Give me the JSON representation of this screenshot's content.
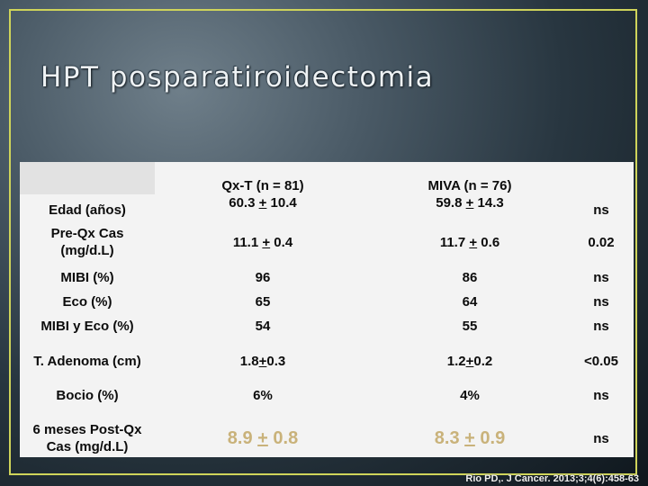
{
  "title": "HPT posparatiroidectomia",
  "table": {
    "header": {
      "col1": "",
      "col2": "Qx-T (n = 81)",
      "col3": "MIVA (n = 76)",
      "col4": ""
    },
    "rows": [
      {
        "label": "Edad (años)",
        "qxt": [
          "60.3 ",
          "+",
          " 10.4"
        ],
        "miva": [
          "59.8 ",
          "+",
          " 14.3"
        ],
        "p": "ns"
      },
      {
        "label": "Pre-Qx Cas (mg/d.L)",
        "qxt": [
          "11.1 ",
          "+",
          " 0.4"
        ],
        "miva": [
          "11.7 ",
          "+",
          " 0.6"
        ],
        "p": "0.02"
      },
      {
        "label": "MIBI (%)",
        "qxt": "96",
        "miva": "86",
        "p": "ns"
      },
      {
        "label": "Eco (%)",
        "qxt": "65",
        "miva": "64",
        "p": "ns"
      },
      {
        "label": "MIBI y Eco (%)",
        "qxt": "54",
        "miva": "55",
        "p": "ns"
      },
      {
        "label": "T. Adenoma (cm)",
        "qxt": [
          "1.8",
          "+",
          "0.3"
        ],
        "miva": [
          "1.2",
          "+",
          "0.2"
        ],
        "p": "<0.05"
      },
      {
        "label": "Bocio (%)",
        "qxt": "6%",
        "miva": "4%",
        "p": "ns"
      },
      {
        "label": "6 meses Post-Qx Cas (mg/d.L)",
        "qxt": [
          "8.9 ",
          "+",
          " 0.8"
        ],
        "miva": [
          "8.3 ",
          "+",
          " 0.9"
        ],
        "p": "ns"
      }
    ]
  },
  "citation": "Rio PD,. J Cancer. 2013;3;4(6):458-63",
  "colors": {
    "border": "#cfd45a",
    "highlight_values": "#c9b27a",
    "table_background": "#f3f3f3"
  }
}
